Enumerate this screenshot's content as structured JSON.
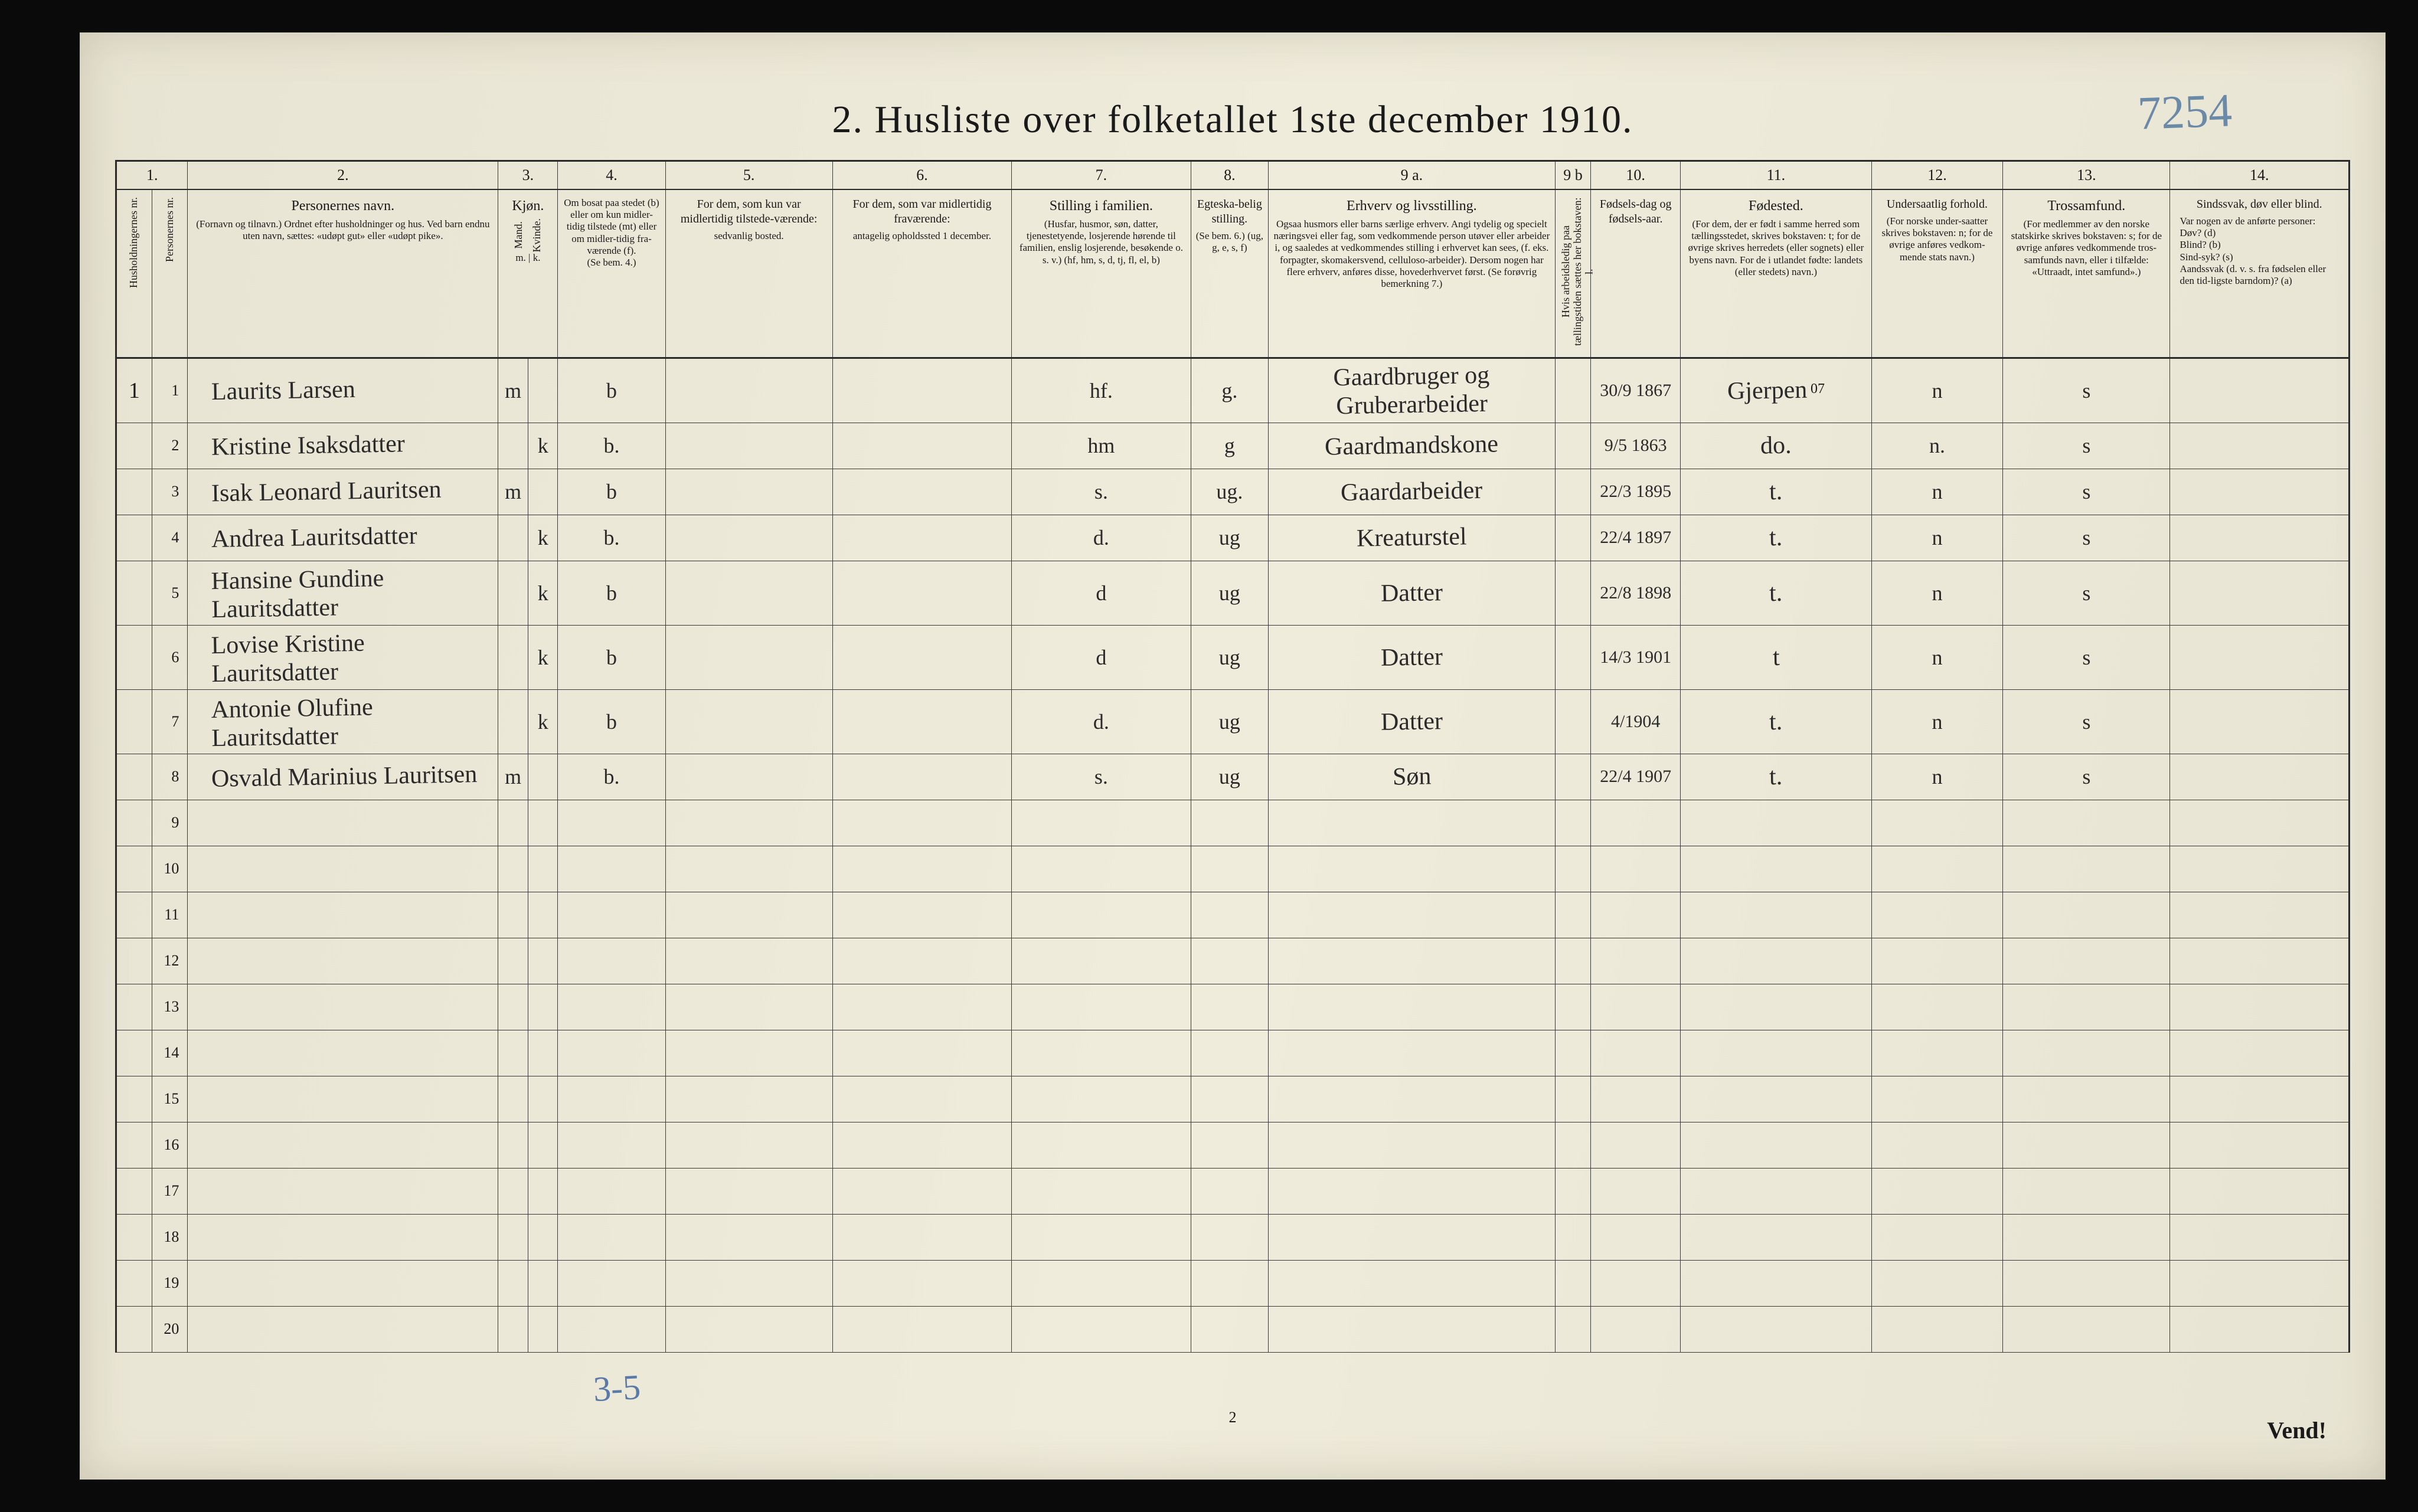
{
  "title": "2.  Husliste over folketallet 1ste december 1910.",
  "handwritten_code": "7254",
  "bottom_handwrite": "3-5",
  "bottom_center": "2",
  "footer_note": "Vend!",
  "colors": {
    "paper": "#ece8d8",
    "ink": "#1a1a1a",
    "pencil_blue": "#6b8aa8",
    "border": "#3a3a3a"
  },
  "column_numbers": [
    "1.",
    "2.",
    "3.",
    "4.",
    "5.",
    "6.",
    "7.",
    "8.",
    "9 a.",
    "9 b",
    "10.",
    "11.",
    "12.",
    "13.",
    "14."
  ],
  "headers": {
    "c1a": "Husholdningernes nr.",
    "c1b": "Personernes nr.",
    "c2_main": "Personernes navn.",
    "c2_sub": "(Fornavn og tilnavn.)\nOrdnet efter husholdninger og hus.\nVed barn endnu uten navn, sættes: «udøpt gut» eller «udøpt pike».",
    "c3_main": "Kjøn.",
    "c3a": "Mand.",
    "c3b": "Kvinde.",
    "c3_mk": "m. | k.",
    "c4_main": "Om bosat paa stedet (b) eller om kun midler-tidig tilstede (mt) eller om midler-tidig fra-værende (f).",
    "c4_sub": "(Se bem. 4.)",
    "c5_main": "For dem, som kun var midlertidig tilstede-værende:",
    "c5_sub": "sedvanlig bosted.",
    "c6_main": "For dem, som var midlertidig fraværende:",
    "c6_sub": "antagelig opholdssted 1 december.",
    "c7_main": "Stilling i familien.",
    "c7_sub": "(Husfar, husmor, søn, datter, tjenestetyende, losjerende hørende til familien, enslig losjerende, besøkende o. s. v.)\n(hf, hm, s, d, tj, fl, el, b)",
    "c8_main": "Egteska-belig stilling.",
    "c8_sub": "(Se bem. 6.)\n(ug, g, e, s, f)",
    "c9a_main": "Erhverv og livsstilling.",
    "c9a_sub": "Ogsaa husmors eller barns særlige erhverv. Angi tydelig og specielt næringsvei eller fag, som vedkommende person utøver eller arbeider i, og saaledes at vedkommendes stilling i erhvervet kan sees, (f. eks. forpagter, skomakersvend, celluloso-arbeider). Dersom nogen har flere erhverv, anføres disse, hovederhvervet først.\n(Se forøvrig bemerkning 7.)",
    "c9b": "Hvis arbeidsledig paa tællingstiden sættes her bokstaven: l.",
    "c10_main": "Fødsels-dag og fødsels-aar.",
    "c11_main": "Fødested.",
    "c11_sub": "(For dem, der er født i samme herred som tællingsstedet, skrives bokstaven: t; for de øvrige skrives herredets (eller sognets) eller byens navn. For de i utlandet fødte: landets (eller stedets) navn.)",
    "c12_main": "Undersaatlig forhold.",
    "c12_sub": "(For norske under-saatter skrives bokstaven: n; for de øvrige anføres vedkom-mende stats navn.)",
    "c13_main": "Trossamfund.",
    "c13_sub": "(For medlemmer av den norske statskirke skrives bokstaven: s; for de øvrige anføres vedkommende tros-samfunds navn, eller i tilfælde: «Uttraadt, intet samfund».)",
    "c14_main": "Sindssvak, døv eller blind.",
    "c14_sub": "Var nogen av de anførte personer:\nDøv?        (d)\nBlind?      (b)\nSind-syk?   (s)\nAandssvak (d. v. s. fra fødselen eller den tid-ligste barndom)? (a)"
  },
  "rows": [
    {
      "hh": "1",
      "pn": "1",
      "name": "Laurits Larsen",
      "sex_m": "m",
      "sex_k": "",
      "res": "b",
      "col5": "",
      "col6": "",
      "fam": "hf.",
      "mar": "g.",
      "occ": "Gaardbruger og Gruberarbeider",
      "c9b": "",
      "dob": "30/9 1867",
      "birthplace": "Gjerpen",
      "nat": "n",
      "rel": "s",
      "c14": ""
    },
    {
      "hh": "",
      "pn": "2",
      "name": "Kristine Isaksdatter",
      "sex_m": "",
      "sex_k": "k",
      "res": "b.",
      "col5": "",
      "col6": "",
      "fam": "hm",
      "mar": "g",
      "occ": "Gaardmandskone",
      "c9b": "",
      "dob": "9/5 1863",
      "birthplace": "do.",
      "nat": "n.",
      "rel": "s",
      "c14": ""
    },
    {
      "hh": "",
      "pn": "3",
      "name": "Isak Leonard Lauritsen",
      "sex_m": "m",
      "sex_k": "",
      "res": "b",
      "col5": "",
      "col6": "",
      "fam": "s.",
      "mar": "ug.",
      "occ": "Gaardarbeider",
      "c9b": "",
      "dob": "22/3 1895",
      "birthplace": "t.",
      "nat": "n",
      "rel": "s",
      "c14": ""
    },
    {
      "hh": "",
      "pn": "4",
      "name": "Andrea Lauritsdatter",
      "sex_m": "",
      "sex_k": "k",
      "res": "b.",
      "col5": "",
      "col6": "",
      "fam": "d.",
      "mar": "ug",
      "occ": "Kreaturstel",
      "c9b": "",
      "dob": "22/4 1897",
      "birthplace": "t.",
      "nat": "n",
      "rel": "s",
      "c14": ""
    },
    {
      "hh": "",
      "pn": "5",
      "name": "Hansine Gundine Lauritsdatter",
      "sex_m": "",
      "sex_k": "k",
      "res": "b",
      "col5": "",
      "col6": "",
      "fam": "d",
      "mar": "ug",
      "occ": "Datter",
      "c9b": "",
      "dob": "22/8 1898",
      "birthplace": "t.",
      "nat": "n",
      "rel": "s",
      "c14": ""
    },
    {
      "hh": "",
      "pn": "6",
      "name": "Lovise Kristine Lauritsdatter",
      "sex_m": "",
      "sex_k": "k",
      "res": "b",
      "col5": "",
      "col6": "",
      "fam": "d",
      "mar": "ug",
      "occ": "Datter",
      "c9b": "",
      "dob": "14/3 1901",
      "birthplace": "t",
      "nat": "n",
      "rel": "s",
      "c14": ""
    },
    {
      "hh": "",
      "pn": "7",
      "name": "Antonie Olufine Lauritsdatter",
      "sex_m": "",
      "sex_k": "k",
      "res": "b",
      "col5": "",
      "col6": "",
      "fam": "d.",
      "mar": "ug",
      "occ": "Datter",
      "c9b": "",
      "dob": "4/1904",
      "birthplace": "t.",
      "nat": "n",
      "rel": "s",
      "c14": ""
    },
    {
      "hh": "",
      "pn": "8",
      "name": "Osvald Marinius Lauritsen",
      "sex_m": "m",
      "sex_k": "",
      "res": "b.",
      "col5": "",
      "col6": "",
      "fam": "s.",
      "mar": "ug",
      "occ": "Søn",
      "c9b": "",
      "dob": "22/4 1907",
      "birthplace": "t.",
      "nat": "n",
      "rel": "s",
      "c14": ""
    }
  ],
  "empty_rows": [
    9,
    10,
    11,
    12,
    13,
    14,
    15,
    16,
    17,
    18,
    19,
    20
  ],
  "birthplace_annotation": "07"
}
